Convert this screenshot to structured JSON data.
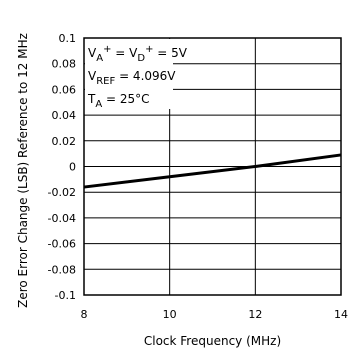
{
  "chart_data": {
    "type": "line",
    "xlabel": "Clock Frequency (MHz)",
    "ylabel": "Zero Error Change (LSB) Reference to 12 MHz",
    "xlim": [
      8,
      14
    ],
    "ylim": [
      -0.1,
      0.1
    ],
    "x_ticks": [
      8,
      10,
      12,
      14
    ],
    "x_tick_labels": [
      "8",
      "10",
      "12",
      "14"
    ],
    "y_ticks": [
      0.1,
      0.08,
      0.06,
      0.04,
      0.02,
      0,
      -0.02,
      -0.04,
      -0.06,
      -0.08,
      -0.1
    ],
    "y_tick_labels": [
      "0.1",
      "0.08",
      "0.06",
      "0.04",
      "0.02",
      "0",
      "-0.02",
      "-0.04",
      "-0.06",
      "-0.08",
      "-0.1"
    ],
    "grid": true,
    "series": [
      {
        "x": [
          8,
          10,
          12,
          14
        ],
        "y": [
          -0.016,
          -0.008,
          0.0,
          0.009
        ]
      }
    ],
    "annotations": [
      {
        "parts": [
          {
            "t": "V",
            "s": "n"
          },
          {
            "t": "A",
            "s": "sub"
          },
          {
            "t": "+",
            "s": "sup"
          },
          {
            "t": " = V",
            "s": "n"
          },
          {
            "t": "D",
            "s": "sub"
          },
          {
            "t": "+",
            "s": "sup"
          },
          {
            "t": " = 5V",
            "s": "n"
          }
        ]
      },
      {
        "parts": [
          {
            "t": "V",
            "s": "n"
          },
          {
            "t": "REF",
            "s": "sub"
          },
          {
            "t": " = 4.096V",
            "s": "n"
          }
        ]
      },
      {
        "parts": [
          {
            "t": "T",
            "s": "n"
          },
          {
            "t": "A",
            "s": "sub"
          },
          {
            "t": " = 25°C",
            "s": "n"
          }
        ]
      }
    ],
    "colors": {
      "line": "#000000",
      "grid": "#000000",
      "frame": "#000000"
    }
  }
}
